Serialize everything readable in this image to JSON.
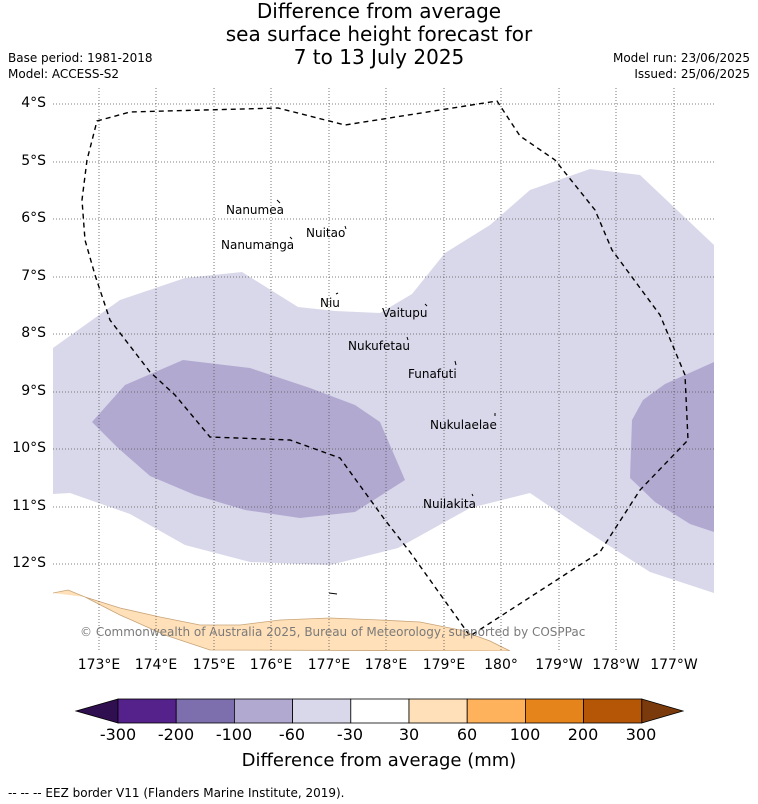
{
  "title_lines": [
    "Difference from average",
    "sea surface height forecast for",
    "7 to 13 July 2025"
  ],
  "base_period": "Base period: 1981-2018",
  "model": "Model: ACCESS-S2",
  "model_run": "Model run: 23/06/2025",
  "issued": "Issued: 25/06/2025",
  "lat_labels": [
    "4°S",
    "5°S",
    "6°S",
    "7°S",
    "8°S",
    "9°S",
    "10°S",
    "11°S",
    "12°S"
  ],
  "lon_labels": [
    "173°E",
    "174°E",
    "175°E",
    "176°E",
    "177°E",
    "178°E",
    "179°E",
    "180°",
    "179°W",
    "178°W",
    "177°W"
  ],
  "islands": [
    "Nanumea",
    "Nuitao",
    "Nanumanga",
    "Niu",
    "Vaitupu",
    "Nukufetau",
    "Funafuti",
    "Nukulaelae",
    "Nuilakita"
  ],
  "copyright": "© Commonwealth of Australia 2025, Bureau of Meteorology, supported by COSPPac",
  "colorbar": {
    "ticks": [
      "-300",
      "-200",
      "-100",
      "-60",
      "-30",
      "30",
      "60",
      "100",
      "200",
      "300"
    ],
    "colors": [
      "#2f0f4f",
      "#55218a",
      "#7d6fad",
      "#b2a9d1",
      "#d8d8ea",
      "#ffffff",
      "#ffe0b8",
      "#ffb25c",
      "#e5841a",
      "#b55606",
      "#7a3a0c"
    ],
    "label": "Difference from average (mm)"
  },
  "legend_eez": "--  --  -- EEZ border V11 (Flanders Marine Institute, 2019)."
}
